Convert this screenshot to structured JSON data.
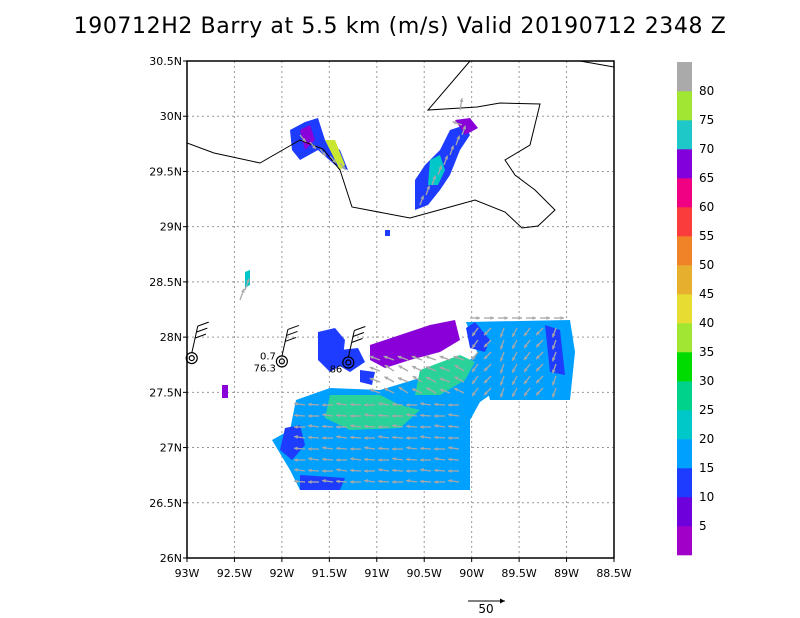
{
  "title": "190712H2 Barry at 5.5 km (m/s) Valid 20190712 2348 Z",
  "map": {
    "lon_range": [
      -93.0,
      -88.5
    ],
    "lat_range": [
      26.0,
      30.5
    ],
    "lat_ticks": [
      {
        "value": 30.5,
        "label": "30.5N"
      },
      {
        "value": 30.0,
        "label": "30N"
      },
      {
        "value": 29.5,
        "label": "29.5N"
      },
      {
        "value": 29.0,
        "label": "29N"
      },
      {
        "value": 28.5,
        "label": "28.5N"
      },
      {
        "value": 28.0,
        "label": "28N"
      },
      {
        "value": 27.5,
        "label": "27.5N"
      },
      {
        "value": 27.0,
        "label": "27N"
      },
      {
        "value": 26.5,
        "label": "26.5N"
      },
      {
        "value": 26.0,
        "label": "26N"
      }
    ],
    "lon_ticks": [
      {
        "value": -93.0,
        "label": "93W"
      },
      {
        "value": -92.5,
        "label": "92.5W"
      },
      {
        "value": -92.0,
        "label": "92W"
      },
      {
        "value": -91.5,
        "label": "91.5W"
      },
      {
        "value": -91.0,
        "label": "91W"
      },
      {
        "value": -90.5,
        "label": "90.5W"
      },
      {
        "value": -90.0,
        "label": "90W"
      },
      {
        "value": -89.5,
        "label": "89.5W"
      },
      {
        "value": -89.0,
        "label": "89W"
      },
      {
        "value": -88.5,
        "label": "88.5W"
      }
    ],
    "grid": "dotted"
  },
  "colorbar": {
    "labels": [
      "5",
      "10",
      "15",
      "20",
      "25",
      "30",
      "35",
      "40",
      "45",
      "50",
      "55",
      "60",
      "65",
      "70",
      "75",
      "80"
    ],
    "colors": [
      "#a000c8",
      "#6e00dc",
      "#1e3cff",
      "#00a0ff",
      "#00c8c8",
      "#00d28c",
      "#00dc00",
      "#a0e632",
      "#e6dc32",
      "#e6af2d",
      "#f08228",
      "#fa3c3c",
      "#f00082",
      "#8200dc",
      "#1ec8c8",
      "#a0e632",
      "#aaaaaa"
    ]
  },
  "observations": [
    {
      "lon": -92.95,
      "lat": 27.81,
      "label_top": "",
      "label_bottom": ""
    },
    {
      "lon": -92.0,
      "lat": 27.78,
      "label_top": "0.7",
      "label_bottom": "76.3"
    },
    {
      "lon": -91.3,
      "lat": 27.77,
      "label_top": "",
      "label_bottom": "86"
    }
  ],
  "scale_vector": {
    "label": "50"
  }
}
